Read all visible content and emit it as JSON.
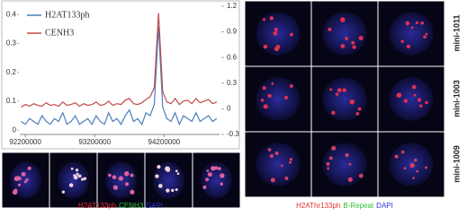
{
  "chart_data": {
    "type": "line",
    "x": [
      92140000,
      92200000,
      92260000,
      92320000,
      92380000,
      92440000,
      92500000,
      92560000,
      92620000,
      92680000,
      92740000,
      92800000,
      92860000,
      92920000,
      92980000,
      93040000,
      93100000,
      93160000,
      93220000,
      93280000,
      93340000,
      93400000,
      93460000,
      93520000,
      93580000,
      93640000,
      93700000,
      93760000,
      93820000,
      93880000,
      93940000,
      94000000,
      94060000,
      94120000,
      94180000,
      94240000,
      94300000,
      94360000,
      94420000,
      94480000,
      94540000,
      94600000,
      94660000,
      94720000,
      94780000,
      94840000,
      94900000,
      94960000
    ],
    "series": [
      {
        "name": "H2AT133ph",
        "color": "#4a7ebb",
        "axis": "y",
        "values": [
          0.03,
          0.02,
          0.04,
          0.03,
          0.02,
          0.05,
          0.03,
          0.02,
          0.04,
          0.03,
          0.06,
          0.02,
          0.03,
          0.05,
          0.02,
          0.03,
          0.04,
          0.02,
          0.05,
          0.03,
          0.02,
          0.06,
          0.03,
          0.04,
          0.02,
          0.05,
          0.07,
          0.03,
          0.04,
          0.02,
          0.06,
          0.05,
          0.09,
          0.36,
          0.08,
          0.04,
          0.03,
          0.06,
          0.02,
          0.05,
          0.04,
          0.03,
          0.06,
          0.03,
          0.04,
          0.05,
          0.03,
          0.04
        ]
      },
      {
        "name": "CENH3",
        "color": "#be4b48",
        "axis": "y2",
        "values": [
          0.02,
          0.05,
          0.03,
          0.06,
          0.04,
          0.03,
          0.07,
          0.04,
          0.05,
          0.03,
          0.08,
          0.04,
          0.05,
          0.07,
          0.03,
          0.06,
          0.04,
          0.05,
          0.08,
          0.04,
          0.05,
          0.09,
          0.04,
          0.06,
          0.05,
          0.1,
          0.12,
          0.06,
          0.05,
          0.07,
          0.11,
          0.14,
          0.25,
          1.12,
          0.2,
          0.08,
          0.06,
          0.12,
          0.05,
          0.09,
          0.1,
          0.06,
          0.12,
          0.07,
          0.09,
          0.11,
          0.06,
          0.08
        ]
      }
    ],
    "xlim": [
      92120000,
      95000000
    ],
    "xticks": [
      92200000,
      93200000,
      94200000
    ],
    "ylim": [
      -0.015,
      0.435
    ],
    "yticks": [
      0,
      0.1,
      0.2,
      0.3,
      0.4
    ],
    "y2lim": [
      -0.3,
      1.22
    ],
    "y2ticks": [
      -0.3,
      0,
      0.3,
      0.6,
      0.9,
      1.2
    ],
    "legend": "top-left"
  },
  "left_caption": [
    {
      "text": "H2AT133ph",
      "color": "#e03030"
    },
    {
      "text": "CENH3",
      "color": "#30c030"
    },
    {
      "text": "DAPI",
      "color": "#3030e0"
    }
  ],
  "right_caption": [
    {
      "text": "H2AThr133ph",
      "color": "#e03030"
    },
    {
      "text": "B-Repeat",
      "color": "#30c030"
    },
    {
      "text": "DAPI",
      "color": "#3030e0"
    }
  ],
  "row_labels": [
    "mini-1011",
    "mini-1003",
    "mini-1009"
  ]
}
